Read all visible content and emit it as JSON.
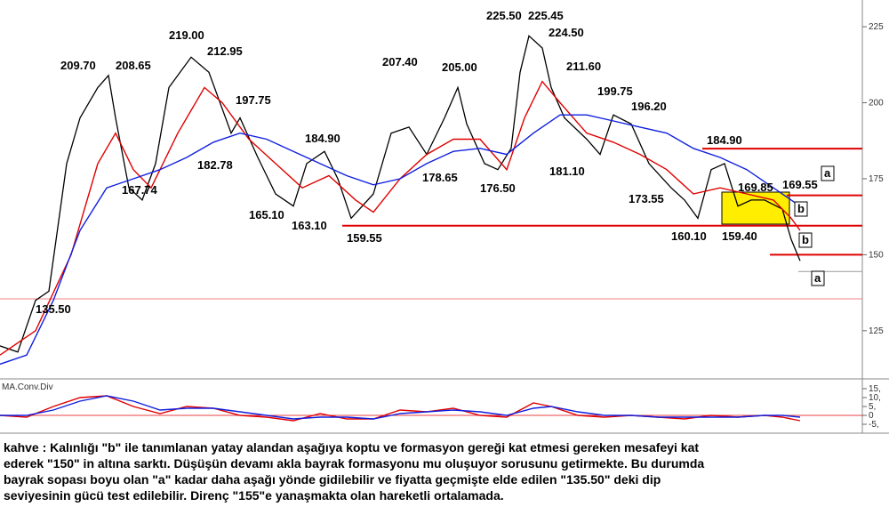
{
  "chart_data": [
    {
      "type": "price",
      "xlim": [
        0,
        97
      ],
      "ylim": [
        109.3,
        233.8
      ],
      "yticks": [
        125,
        150,
        175,
        200,
        225
      ],
      "series": [
        {
          "name": null,
          "color": "#000000",
          "x": [
            0,
            2,
            4,
            5.5,
            7.5,
            9,
            11,
            12.2,
            13,
            14.5,
            16,
            17.5,
            19,
            21.5,
            23.5,
            26,
            27,
            29,
            31,
            33,
            34.5,
            36.5,
            38,
            39.5,
            42,
            44,
            46,
            48,
            50,
            51.5,
            52.5,
            54.5,
            56,
            57.5,
            58.5,
            59.5,
            61,
            62,
            63.5,
            66,
            67.5,
            69,
            71,
            73,
            75.5,
            77,
            78.5,
            80,
            81.5,
            83,
            84.5,
            86,
            88,
            89,
            90
          ],
          "values": [
            120,
            118,
            135,
            138,
            180,
            195,
            205,
            209,
            195,
            172,
            168,
            180,
            205,
            215,
            210,
            190,
            195,
            182,
            170,
            166,
            180,
            184,
            175,
            162,
            170,
            190,
            192,
            183,
            195,
            205,
            193,
            180,
            178,
            185,
            210,
            222,
            218,
            205,
            195,
            188,
            183,
            196,
            193,
            180,
            172,
            168,
            162,
            178,
            180,
            166,
            168,
            168,
            165,
            155,
            148
          ]
        },
        {
          "name": null,
          "color": "#e00000",
          "x": [
            0,
            4,
            8,
            11,
            13,
            15,
            17,
            20,
            23,
            25,
            28,
            31,
            34,
            37,
            40,
            42,
            45,
            48,
            51,
            54,
            57,
            59,
            61,
            63,
            66,
            69,
            72,
            75,
            78,
            81,
            84,
            87,
            89,
            90
          ],
          "values": [
            117,
            125,
            150,
            180,
            190,
            178,
            172,
            190,
            205,
            200,
            188,
            180,
            172,
            176,
            168,
            164,
            175,
            183,
            188,
            188,
            178,
            195,
            207,
            200,
            190,
            187,
            183,
            178,
            170,
            172,
            170,
            168,
            162,
            158
          ]
        },
        {
          "name": null,
          "color": "#1020e0",
          "x": [
            0,
            3,
            6,
            9,
            12,
            15,
            18,
            21,
            24,
            27,
            30,
            33,
            36,
            39,
            42,
            45,
            48,
            51,
            54,
            57,
            60,
            63,
            66,
            69,
            72,
            75,
            78,
            81,
            84,
            87,
            89,
            90
          ],
          "values": [
            114,
            117,
            135,
            158,
            172,
            175,
            178,
            182,
            187,
            190,
            188,
            184,
            180,
            176,
            173,
            175,
            180,
            184,
            185,
            183,
            190,
            196,
            196,
            194,
            192,
            190,
            185,
            182,
            178,
            172,
            168,
            166
          ]
        }
      ],
      "levels": [
        184.9,
        169.55,
        159.55,
        150,
        135.5,
        144.5
      ],
      "level_colors": [
        "#e00000",
        "#e00000",
        "#e00000",
        "#e00000",
        "#f08080",
        "#999999"
      ],
      "annotations": [
        "209.70",
        "208.65",
        "219.00",
        "212.95",
        "197.75",
        "182.78",
        "167.74",
        "184.90",
        "165.10",
        "163.10",
        "159.55",
        "135.50",
        "207.40",
        "205.00",
        "178.65",
        "176.50",
        "225.50",
        "225.45",
        "224.50",
        "211.60",
        "199.75",
        "196.20",
        "181.10",
        "173.55",
        "184.90",
        "169.85",
        "169.55",
        "160.10",
        "159.40",
        "a",
        "b",
        "b",
        "a"
      ]
    },
    {
      "type": "line",
      "title": "MA.Conv.Div",
      "xlim": [
        0,
        97
      ],
      "ylim": [
        -10,
        19.5
      ],
      "yticks": [
        {
          "value": 15,
          "label": "15,"
        },
        {
          "value": 10,
          "label": "10,"
        },
        {
          "value": 5,
          "label": "5,"
        },
        0,
        {
          "value": -5,
          "label": "-5,"
        }
      ],
      "series": [
        {
          "name": null,
          "color": "#e00000",
          "x": [
            0,
            3,
            6,
            9,
            12,
            15,
            18,
            21,
            24,
            27,
            30,
            33,
            36,
            39,
            42,
            45,
            48,
            51,
            54,
            57,
            60,
            62,
            65,
            68,
            71,
            74,
            77,
            80,
            83,
            86,
            88,
            90
          ],
          "values": [
            0,
            -1,
            5,
            10,
            11,
            5,
            1,
            5,
            4,
            0,
            -1,
            -3,
            1,
            -2,
            -2,
            3,
            2,
            4,
            0,
            -1,
            7,
            5,
            0,
            -1,
            0,
            -1,
            -2,
            0,
            -1,
            0,
            -1,
            -3
          ]
        },
        {
          "name": null,
          "color": "#1020e0",
          "x": [
            0,
            3,
            6,
            9,
            12,
            15,
            18,
            21,
            24,
            27,
            30,
            33,
            36,
            39,
            42,
            45,
            48,
            51,
            54,
            57,
            60,
            62,
            65,
            68,
            71,
            74,
            77,
            80,
            83,
            86,
            88,
            90
          ],
          "values": [
            0,
            0,
            3,
            8,
            11,
            8,
            3,
            4,
            4,
            2,
            0,
            -2,
            -1,
            -1,
            -2,
            1,
            2,
            3,
            2,
            0,
            4,
            5,
            2,
            0,
            0,
            -1,
            -1,
            -1,
            -1,
            0,
            0,
            -1
          ]
        }
      ]
    },
    {
      "type": "text",
      "lines": [
        "kahve : Kalınlığı \"b\" ile tanımlanan yatay alandan aşağıya koptu ve formasyon gereği kat etmesi gereken mesafeyi kat",
        "ederek \"150\" in altına sarktı. Düşüşün devamı akla bayrak formasyonu mu oluşuyor sorusunu getirmekte. Bu durumda",
        "bayrak sopası boyu olan \"a\" kadar daha aşağı yönde gidilebilir ve fiyatta geçmişte elde edilen \"135.50\" deki dip",
        "seviyesinin gücü test edilebilir. Direnç \"155\"e yanaşmakta olan hareketli ortalamada."
      ]
    }
  ]
}
